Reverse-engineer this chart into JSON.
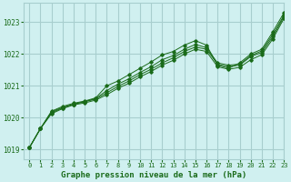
{
  "title": "Graphe pression niveau de la mer (hPa)",
  "bg_color": "#d0f0f0",
  "grid_color": "#a8cece",
  "line_color": "#1a6b1a",
  "xlim": [
    -0.5,
    23
  ],
  "ylim": [
    1018.7,
    1023.6
  ],
  "yticks": [
    1019,
    1020,
    1021,
    1022,
    1023
  ],
  "xticks": [
    0,
    1,
    2,
    3,
    4,
    5,
    6,
    7,
    8,
    9,
    10,
    11,
    12,
    13,
    14,
    15,
    16,
    17,
    18,
    19,
    20,
    21,
    22,
    23
  ],
  "series": [
    [
      1019.05,
      1019.65,
      1020.2,
      1020.35,
      1020.45,
      1020.52,
      1020.62,
      1021.0,
      1021.15,
      1021.35,
      1021.55,
      1021.75,
      1021.97,
      1022.08,
      1022.28,
      1022.42,
      1022.28,
      1021.65,
      1021.55,
      1021.72,
      1022.0,
      1022.15,
      1022.7,
      1023.3
    ],
    [
      1019.05,
      1019.65,
      1020.18,
      1020.32,
      1020.42,
      1020.5,
      1020.6,
      1020.85,
      1021.05,
      1021.22,
      1021.42,
      1021.6,
      1021.82,
      1021.95,
      1022.15,
      1022.3,
      1022.2,
      1021.72,
      1021.65,
      1021.68,
      1021.95,
      1022.1,
      1022.62,
      1023.22
    ],
    [
      1019.05,
      1019.65,
      1020.15,
      1020.3,
      1020.42,
      1020.5,
      1020.58,
      1020.78,
      1020.98,
      1021.15,
      1021.35,
      1021.52,
      1021.72,
      1021.88,
      1022.08,
      1022.22,
      1022.15,
      1021.68,
      1021.6,
      1021.65,
      1021.92,
      1022.05,
      1022.55,
      1023.18
    ],
    [
      1019.05,
      1019.65,
      1020.12,
      1020.28,
      1020.4,
      1020.46,
      1020.55,
      1020.72,
      1020.92,
      1021.08,
      1021.28,
      1021.45,
      1021.65,
      1021.8,
      1022.0,
      1022.15,
      1022.08,
      1021.6,
      1021.52,
      1021.58,
      1021.82,
      1021.98,
      1022.48,
      1023.12
    ]
  ]
}
